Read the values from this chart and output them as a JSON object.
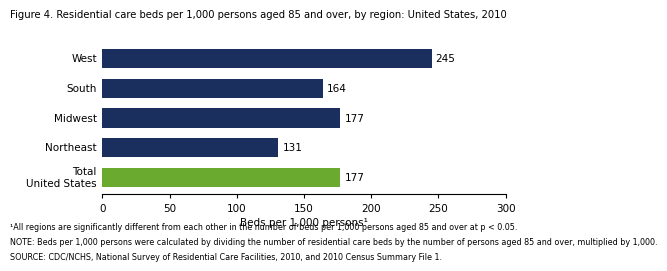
{
  "title": "Figure 4. Residential care beds per 1,000 persons aged 85 and over, by region: United States, 2010",
  "categories": [
    "West",
    "South",
    "Midwest",
    "Northeast",
    "Total\nUnited States"
  ],
  "values": [
    245,
    164,
    177,
    131,
    177
  ],
  "bar_colors": [
    "#1b2f5e",
    "#1b2f5e",
    "#1b2f5e",
    "#1b2f5e",
    "#6aaa2e"
  ],
  "xlabel": "Beds per 1,000 persons¹",
  "xlim": [
    0,
    300
  ],
  "xticks": [
    0,
    50,
    100,
    150,
    200,
    250,
    300
  ],
  "footnote1": "¹All regions are significantly different from each other in the number of beds per 1,000 persons aged 85 and over at p < 0.05.",
  "footnote2": "NOTE: Beds per 1,000 persons were calculated by dividing the number of residential care beds by the number of persons aged 85 and over, multiplied by 1,000.",
  "footnote3": "SOURCE: CDC/NCHS, National Survey of Residential Care Facilities, 2010, and 2010 Census Summary File 1.",
  "background_color": "#ffffff",
  "title_fontsize": 7.2,
  "label_fontsize": 7.5,
  "tick_fontsize": 7.5,
  "footnote_fontsize": 5.8,
  "value_fontsize": 7.5,
  "bar_height": 0.65
}
